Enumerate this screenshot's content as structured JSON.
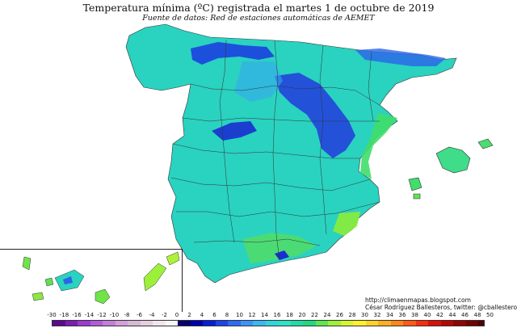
{
  "map": {
    "title": "Temperatura mínima (ºC) registrada el martes 1 de octubre de 2019",
    "subtitle": "Fuente de datos: Red de estaciones automáticas de AEMET",
    "credit_url": "http://climaenmapas.blogspot.com",
    "credit_author": "César Rodríguez Ballesteros, twitter: @cballesteros",
    "legend": {
      "unit": "ºC",
      "labels": [
        "-30",
        "-18",
        "-16",
        "-14",
        "-12",
        "-10",
        "-8",
        "-6",
        "-4",
        "-2",
        "0",
        "2",
        "4",
        "6",
        "8",
        "10",
        "12",
        "14",
        "16",
        "18",
        "20",
        "22",
        "24",
        "26",
        "28",
        "30",
        "32",
        "34",
        "36",
        "38",
        "40",
        "42",
        "44",
        "46",
        "48",
        "50"
      ],
      "colors": [
        "#5b0a8f",
        "#7a1fb0",
        "#9b3bd0",
        "#b05cd8",
        "#c47ed8",
        "#d29fd8",
        "#d8b8d6",
        "#e4cfe0",
        "#f0e6ee",
        "#f7f7f7",
        "#08006e",
        "#0000a8",
        "#0a1ed2",
        "#1e44e6",
        "#2e6af2",
        "#3a94f4",
        "#3ab8f0",
        "#34d4dc",
        "#2ee2c4",
        "#26d8a4",
        "#20d880",
        "#5ee64e",
        "#9cf03a",
        "#d4f434",
        "#fff030",
        "#ffd22a",
        "#ffae22",
        "#ff861a",
        "#ff5a14",
        "#f2300e",
        "#d8100a",
        "#b40808",
        "#900606",
        "#6e0404",
        "#500202"
      ]
    }
  }
}
